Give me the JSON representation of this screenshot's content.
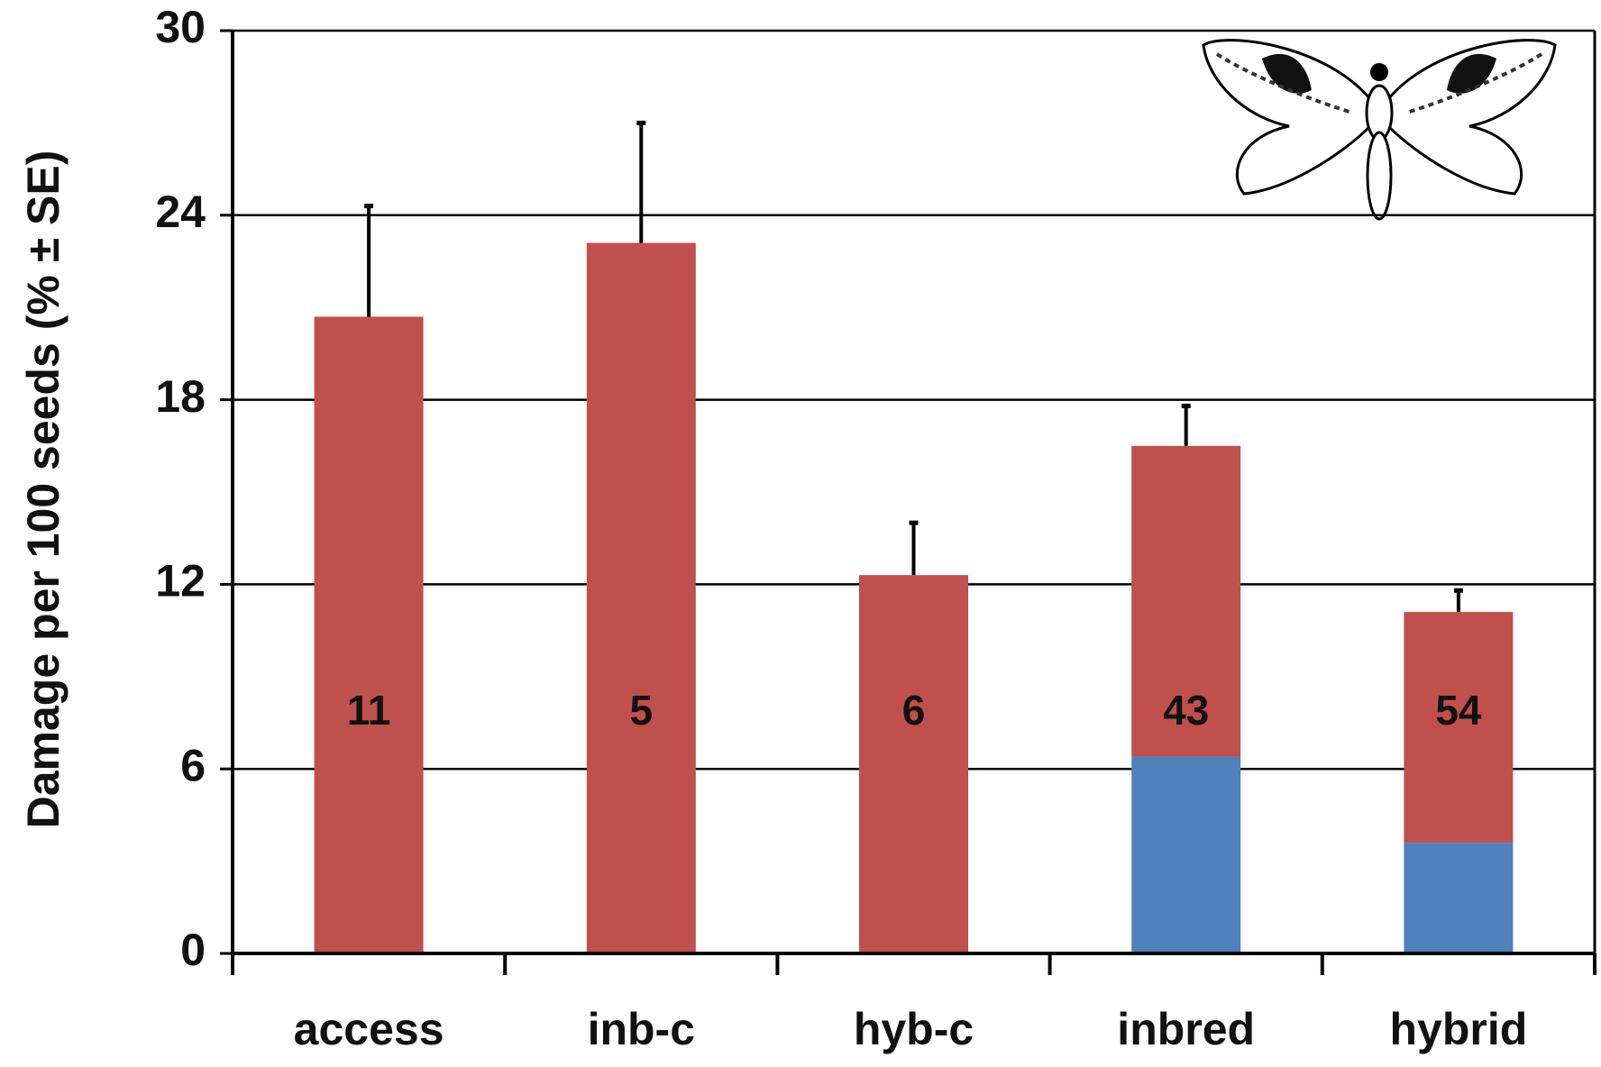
{
  "chart_data": {
    "type": "stacked_bar",
    "y_label": "Damage per 100 seeds (% ± SE)",
    "categories": [
      "access",
      "inb-c",
      "hyb-c",
      "inbred",
      "hybrid"
    ],
    "series": [
      {
        "color": "#4f81bd",
        "values": [
          null,
          null,
          null,
          6.4,
          3.6
        ]
      },
      {
        "color": "#c0504d",
        "values": [
          20.7,
          23.1,
          12.3,
          10.1,
          7.5
        ],
        "errors": [
          3.6,
          3.9,
          1.7,
          1.3,
          0.7
        ]
      }
    ],
    "bar_labels": [
      11,
      5,
      6,
      43,
      54
    ],
    "ylim": [
      0,
      30
    ],
    "yticks": [
      0,
      6,
      12,
      18,
      24,
      30
    ],
    "grid": true
  }
}
